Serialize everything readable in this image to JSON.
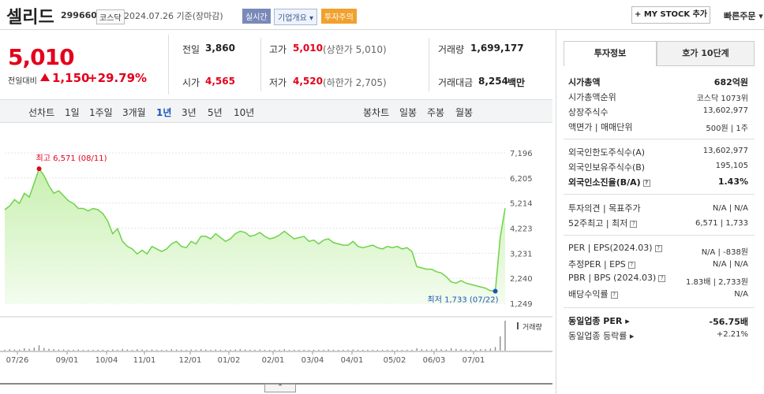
{
  "header": {
    "name": "셀리드",
    "code": "299660",
    "market": "코스닥",
    "date": "2024.07.26 기준(장마감)",
    "badge_live": "실시간",
    "badge_corp": "기업개요 ▾",
    "badge_warn": "투자주의",
    "mystock": "+ MY STOCK 추가",
    "quick_order": "빠른주문 ▾"
  },
  "quote": {
    "price": "5,010",
    "change_label": "전일대비",
    "change": "1,150",
    "change_pct": "+29.79%"
  },
  "stats": {
    "prev_l": "전일",
    "prev_v": "3,860",
    "high_l": "고가",
    "high_v": "5,010",
    "high_sub": "(상한가 5,010)",
    "vol_l": "거래량",
    "vol_v": "1,699,177",
    "open_l": "시가",
    "open_v": "4,565",
    "low_l": "저가",
    "low_v": "4,520",
    "low_sub": "(하한가 2,705)",
    "amt_l": "거래대금",
    "amt_v": "8,254",
    "amt_unit": "백만"
  },
  "periods": {
    "line_label": "선차트",
    "line": [
      "1일",
      "1주일",
      "3개월",
      "1년",
      "3년",
      "5년",
      "10년"
    ],
    "selected": "1년",
    "candle_label": "봉차트",
    "candle": [
      "일봉",
      "주봉",
      "월봉"
    ]
  },
  "chart_data": {
    "type": "area",
    "yticks": [
      7196,
      6205,
      5214,
      4223,
      3231,
      2240,
      1249
    ],
    "ylim": [
      1249,
      7196
    ],
    "xticks": [
      "07/26",
      "09/01",
      "10/04",
      "11/01",
      "12/01",
      "01/02",
      "02/01",
      "03/04",
      "04/01",
      "05/02",
      "06/03",
      "07/01"
    ],
    "high_label": "최고 6,571 (08/11)",
    "low_label": "최저 1,733 (07/22)",
    "volume_label": "거래량",
    "prices": [
      4950,
      5100,
      5350,
      5200,
      5600,
      5450,
      6000,
      6571,
      6300,
      5900,
      5600,
      5700,
      5500,
      5300,
      5200,
      5000,
      5000,
      4900,
      5000,
      4950,
      4800,
      4500,
      4000,
      4200,
      3700,
      3500,
      3400,
      3200,
      3350,
      3200,
      3500,
      3400,
      3300,
      3400,
      3600,
      3700,
      3500,
      3450,
      3700,
      3600,
      3900,
      3900,
      3800,
      4000,
      3850,
      3700,
      3800,
      4000,
      4100,
      4050,
      3900,
      3950,
      4050,
      3900,
      3800,
      3850,
      3950,
      4100,
      3950,
      3800,
      3850,
      3900,
      3700,
      3750,
      3600,
      3750,
      3800,
      3650,
      3600,
      3550,
      3550,
      3700,
      3500,
      3450,
      3500,
      3550,
      3450,
      3400,
      3500,
      3450,
      3500,
      3400,
      3450,
      3300,
      2700,
      2650,
      2600,
      2600,
      2500,
      2450,
      2300,
      2100,
      2050,
      2150,
      2050,
      2000,
      1950,
      1900,
      1850,
      1750,
      1733,
      3860,
      5010
    ],
    "volume": [
      3,
      5,
      4,
      4,
      8,
      6,
      10,
      18,
      9,
      6,
      5,
      4,
      4,
      3,
      3,
      4,
      3,
      3,
      3,
      3,
      3,
      2,
      4,
      3,
      6,
      4,
      3,
      5,
      4,
      3,
      4,
      3,
      3,
      3,
      5,
      4,
      3,
      3,
      4,
      3,
      5,
      4,
      3,
      4,
      3,
      3,
      3,
      4,
      5,
      4,
      3,
      3,
      4,
      3,
      3,
      3,
      3,
      5,
      3,
      3,
      3,
      3,
      3,
      3,
      3,
      3,
      4,
      3,
      3,
      3,
      3,
      4,
      3,
      3,
      3,
      3,
      3,
      3,
      3,
      3,
      3,
      3,
      3,
      3,
      8,
      5,
      4,
      4,
      6,
      5,
      4,
      8,
      6,
      5,
      4,
      4,
      3,
      5,
      5,
      7,
      12,
      48,
      100
    ],
    "colors": {
      "line": "#6fd24a",
      "fill_top": "#c8f0b0",
      "fill_bottom": "#f3fcee",
      "high": "#e3001b",
      "low": "#1a54b8",
      "volume": "#8d8d8d"
    }
  },
  "investment": {
    "tab1": "투자정보",
    "tab2": "호가 10단계",
    "cap_l": "시가총액",
    "cap_v": "682억원",
    "rank_l": "시가총액순위",
    "rank_v": "코스닥 1073위",
    "shares_l": "상장주식수",
    "shares_v": "13,602,977",
    "face_l": "액면가 | 매매단위",
    "face_v": "500원 | 1주",
    "flimit_l": "외국인한도주식수(A)",
    "flimit_v": "13,602,977",
    "fhold_l": "외국인보유주식수(B)",
    "fhold_v": "195,105",
    "frate_l": "외국인소진율(B/A)",
    "frate_v": "1.43%",
    "opinion_l": "투자의견 | 목표주가",
    "opinion_v": "N/A | N/A",
    "w52_l": "52주최고 | 최저",
    "w52_v": "6,571 | 1,733",
    "per_l": "PER | EPS(2024.03)",
    "per_v": "N/A | -838원",
    "eper_l": "추정PER | EPS",
    "eper_v": "N/A | N/A",
    "pbr_l": "PBR | BPS (2024.03)",
    "pbr_v": "1.83배 | 2,733원",
    "div_l": "배당수익률",
    "div_v": "N/A",
    "sper_l": "동일업종 PER",
    "sper_v": "-56.75배",
    "srate_l": "동일업종 등락률",
    "srate_v": "+2.21%"
  }
}
